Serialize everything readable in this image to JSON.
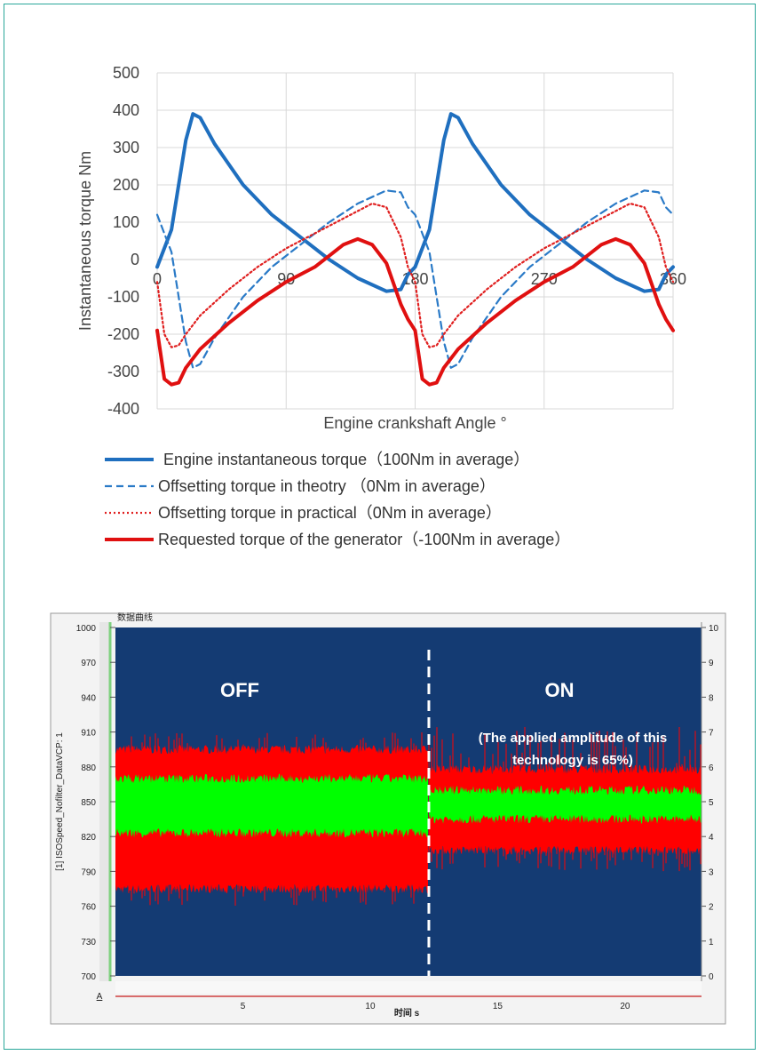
{
  "chart_data": [
    {
      "type": "line",
      "title": "",
      "xlabel": "Engine crankshaft Angle °",
      "ylabel": "Instantaneous torque Nm",
      "xlim": [
        0,
        360
      ],
      "ylim": [
        -400,
        500
      ],
      "xticks": [
        "0",
        "90",
        "180",
        "270",
        "360"
      ],
      "yticks": [
        "500",
        "400",
        "300",
        "200",
        "100",
        "0",
        "-100",
        "-200",
        "-300",
        "-400"
      ],
      "grid": true,
      "legend_position": "bottom",
      "series": [
        {
          "name": "Engine instantaneous torque（100Nm in average）",
          "style": "solid-thick",
          "color": "#1f6fbf",
          "x": [
            0,
            10,
            20,
            25,
            30,
            40,
            60,
            80,
            100,
            120,
            140,
            160,
            170,
            175,
            180,
            190,
            200,
            205,
            210,
            220,
            240,
            260,
            280,
            300,
            320,
            340,
            350,
            355,
            360
          ],
          "y": [
            -20,
            80,
            320,
            390,
            380,
            310,
            200,
            120,
            60,
            0,
            -50,
            -85,
            -80,
            -40,
            -20,
            80,
            320,
            390,
            380,
            310,
            200,
            120,
            60,
            0,
            -50,
            -85,
            -80,
            -40,
            -20
          ]
        },
        {
          "name": "Offsetting torque in theotry （0Nm in average）",
          "style": "dashed",
          "color": "#2a7ac7",
          "x": [
            0,
            10,
            20,
            25,
            30,
            40,
            60,
            80,
            100,
            120,
            140,
            160,
            170,
            175,
            180,
            190,
            200,
            205,
            210,
            220,
            240,
            260,
            280,
            300,
            320,
            340,
            350,
            355,
            360
          ],
          "y": [
            120,
            20,
            -220,
            -290,
            -280,
            -210,
            -100,
            -20,
            40,
            100,
            150,
            185,
            180,
            140,
            120,
            20,
            -220,
            -290,
            -280,
            -210,
            -100,
            -20,
            40,
            100,
            150,
            185,
            180,
            140,
            120
          ]
        },
        {
          "name": "Offsetting torque in practical（0Nm in average）",
          "style": "dotted",
          "color": "#e02020",
          "x": [
            0,
            5,
            10,
            15,
            20,
            30,
            50,
            70,
            90,
            110,
            130,
            150,
            160,
            170,
            175,
            180,
            185,
            190,
            195,
            200,
            210,
            230,
            250,
            270,
            290,
            310,
            330,
            340,
            350,
            355,
            360
          ],
          "y": [
            -60,
            -200,
            -235,
            -230,
            -200,
            -150,
            -80,
            -20,
            30,
            70,
            110,
            150,
            140,
            60,
            -20,
            -60,
            -200,
            -235,
            -230,
            -200,
            -150,
            -80,
            -20,
            30,
            70,
            110,
            150,
            140,
            60,
            -20,
            -60
          ]
        },
        {
          "name": "Requested torque of the generator（-100Nm in average）",
          "style": "solid-thick",
          "color": "#e01010",
          "x": [
            0,
            5,
            10,
            15,
            20,
            30,
            50,
            70,
            90,
            110,
            120,
            130,
            140,
            150,
            160,
            170,
            175,
            180,
            185,
            190,
            195,
            200,
            210,
            230,
            250,
            270,
            290,
            300,
            310,
            320,
            330,
            340,
            350,
            355,
            360
          ],
          "y": [
            -190,
            -320,
            -335,
            -330,
            -290,
            -240,
            -170,
            -110,
            -60,
            -20,
            10,
            40,
            55,
            40,
            -10,
            -120,
            -160,
            -190,
            -320,
            -335,
            -330,
            -290,
            -240,
            -170,
            -110,
            -60,
            -20,
            10,
            40,
            55,
            40,
            -10,
            -120,
            -160,
            -190
          ]
        }
      ]
    },
    {
      "type": "area",
      "title": "",
      "header_tag": "数据曲线",
      "xlabel": "时间 s",
      "ylabel": "[1] ISOSpeed_Nofilter_DataVCP: 1",
      "xlim": [
        0,
        23
      ],
      "ylim": [
        700,
        1000
      ],
      "y2lim": [
        0,
        10
      ],
      "xticks": [
        "5",
        "10",
        "15",
        "20"
      ],
      "yticks": [
        "1000",
        "970",
        "940",
        "910",
        "880",
        "850",
        "820",
        "790",
        "760",
        "730",
        "700"
      ],
      "y2ticks": [
        "10",
        "9",
        "8",
        "7",
        "6",
        "5",
        "4",
        "3",
        "2",
        "1",
        "0"
      ],
      "bottom_marker": "A",
      "background": "#143b73",
      "switch_x": 12.3,
      "annotations": {
        "off_label": "OFF",
        "on_label": "ON",
        "on_note_line1": "(The applied amplitude of this",
        "on_note_line2": "technology is 65%)"
      },
      "series": [
        {
          "name": "",
          "color": "#ff0000",
          "segment": "OFF",
          "x_range": [
            0,
            12.3
          ],
          "band": [
            775,
            895
          ],
          "peaks": [
            760,
            910
          ]
        },
        {
          "name": "",
          "color": "#00ff00",
          "segment": "OFF",
          "x_range": [
            0,
            12.3
          ],
          "band": [
            823,
            870
          ]
        },
        {
          "name": "",
          "color": "#ff0000",
          "segment": "ON",
          "x_range": [
            12.3,
            23
          ],
          "band": [
            808,
            878
          ],
          "peaks": [
            790,
            915
          ]
        },
        {
          "name": "",
          "color": "#00ff00",
          "segment": "ON",
          "x_range": [
            12.3,
            23
          ],
          "band": [
            835,
            860
          ]
        }
      ]
    }
  ]
}
